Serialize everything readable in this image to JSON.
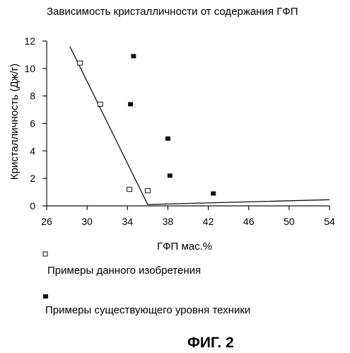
{
  "chart_data": {
    "type": "scatter",
    "title": "Зависимость кристалличности от содержания ГФП",
    "xlabel": "ГФП мас.%",
    "ylabel": "Кристалличность (Дж/г)",
    "xlim": [
      26,
      54
    ],
    "ylim": [
      0,
      12
    ],
    "xticks": [
      "26",
      "30",
      "34",
      "38",
      "42",
      "46",
      "50",
      "54"
    ],
    "yticks": [
      "0",
      "2",
      "4",
      "6",
      "8",
      "10",
      "12"
    ],
    "series": [
      {
        "name": "Примеры данного изобретения",
        "marker": "open-square",
        "color": "#111111",
        "points": [
          [
            29.3,
            10.4
          ],
          [
            31.3,
            7.4
          ],
          [
            34.2,
            1.2
          ],
          [
            36.0,
            1.1
          ]
        ]
      },
      {
        "name": "Примеры существующего уровня техники",
        "marker": "filled-square",
        "color": "#111111",
        "points": [
          [
            34.6,
            10.9
          ],
          [
            34.3,
            7.4
          ],
          [
            38.0,
            4.9
          ],
          [
            38.2,
            2.2
          ],
          [
            42.5,
            0.9
          ]
        ]
      }
    ],
    "trend_line": [
      [
        28.3,
        11.6
      ],
      [
        36.0,
        0.1
      ],
      [
        54,
        0.45
      ]
    ],
    "grid": false,
    "legend_position": "bottom"
  },
  "figure_label": "ФИГ. 2"
}
